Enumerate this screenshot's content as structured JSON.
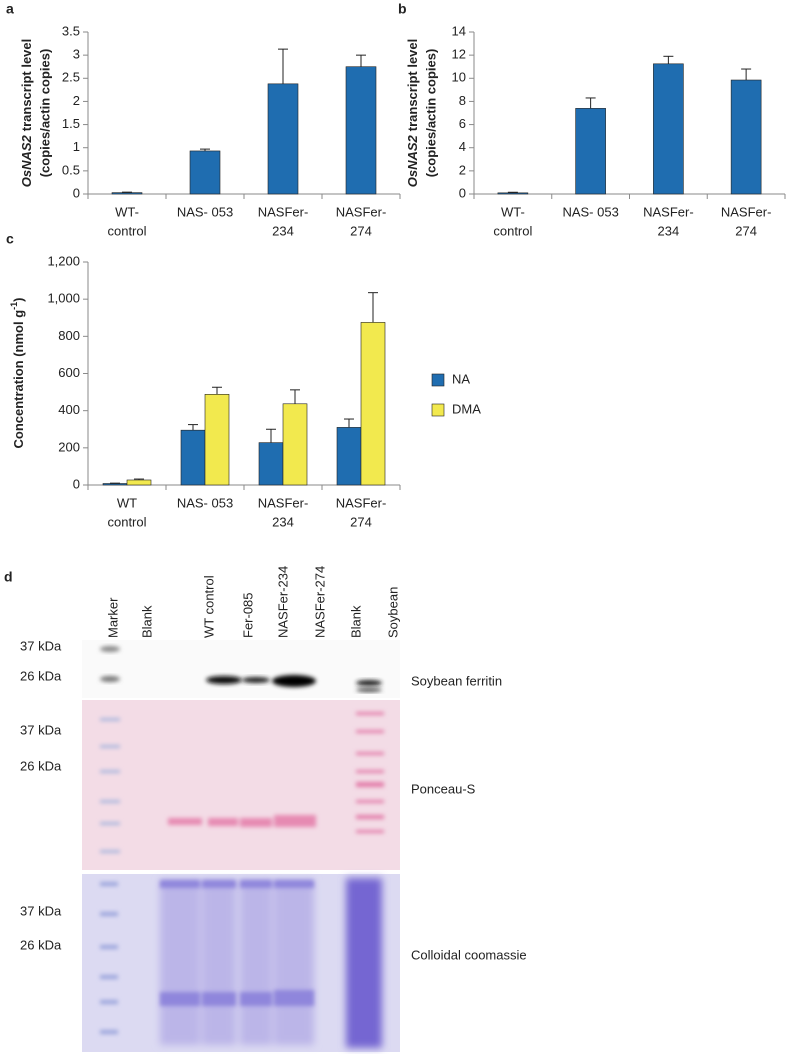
{
  "chart_data": [
    {
      "type": "bar",
      "label": "a",
      "ylabel": [
        "OsNAS2",
        "transcript level",
        "(copies/actin copies)"
      ],
      "categories": [
        [
          "WT-",
          "control"
        ],
        [
          "NAS- 053"
        ],
        [
          "NASFer-",
          "234"
        ],
        [
          "NASFer-",
          "274"
        ]
      ],
      "values": [
        0.03,
        0.93,
        2.38,
        2.75
      ],
      "errors": [
        0.01,
        0.04,
        0.75,
        0.25
      ],
      "color": "#1f6db0",
      "ylim": [
        0,
        3.5
      ],
      "yticks": [
        0,
        0.5,
        1,
        1.5,
        2,
        2.5,
        3,
        3.5
      ]
    },
    {
      "type": "bar",
      "label": "b",
      "ylabel": [
        "OsNAS2",
        "transcript level",
        "(copies/actin copies)"
      ],
      "categories": [
        [
          "WT-",
          "control"
        ],
        [
          "NAS- 053"
        ],
        [
          "NASFer-",
          "234"
        ],
        [
          "NASFer-",
          "274"
        ]
      ],
      "values": [
        0.1,
        7.4,
        11.25,
        9.85
      ],
      "errors": [
        0.05,
        0.9,
        0.65,
        0.95
      ],
      "color": "#1f6db0",
      "ylim": [
        0,
        14
      ],
      "yticks": [
        0,
        2,
        4,
        6,
        8,
        10,
        12,
        14
      ]
    },
    {
      "type": "bar",
      "label": "c",
      "ylabel": [
        "Concentration  (nmol g",
        "-1",
        ")"
      ],
      "categories": [
        [
          "WT",
          "control"
        ],
        [
          "NAS- 053"
        ],
        [
          "NASFer-",
          "234"
        ],
        [
          "NASFer-",
          "274"
        ]
      ],
      "series": [
        {
          "name": "NA",
          "color": "#1f6db0",
          "values": [
            8,
            295,
            228,
            310
          ],
          "errors": [
            2,
            30,
            72,
            45
          ]
        },
        {
          "name": "DMA",
          "color": "#f2e94e",
          "values": [
            27,
            488,
            437,
            875
          ],
          "errors": [
            5,
            38,
            75,
            160
          ]
        }
      ],
      "legend": "right",
      "ylim": [
        0,
        1200
      ],
      "yticks": [
        0,
        200,
        400,
        600,
        800,
        {
          "value": 1000,
          "label": "1,000"
        },
        {
          "value": 1200,
          "label": "1,200"
        }
      ]
    }
  ],
  "panel_d": {
    "label": "d",
    "lanes": [
      "Marker",
      "Blank",
      "WT control",
      "Fer-085",
      "NASFer-234",
      "NASFer-274",
      "Blank",
      "Soybean"
    ],
    "blots": [
      {
        "markers": [
          "37 kDa",
          "26 kDa"
        ],
        "name": "Soybean ferritin"
      },
      {
        "markers": [
          "37 kDa",
          "26 kDa"
        ],
        "name": "Ponceau-S"
      },
      {
        "markers": [
          "37 kDa",
          "26 kDa"
        ],
        "name": "Colloidal coomassie"
      }
    ]
  }
}
